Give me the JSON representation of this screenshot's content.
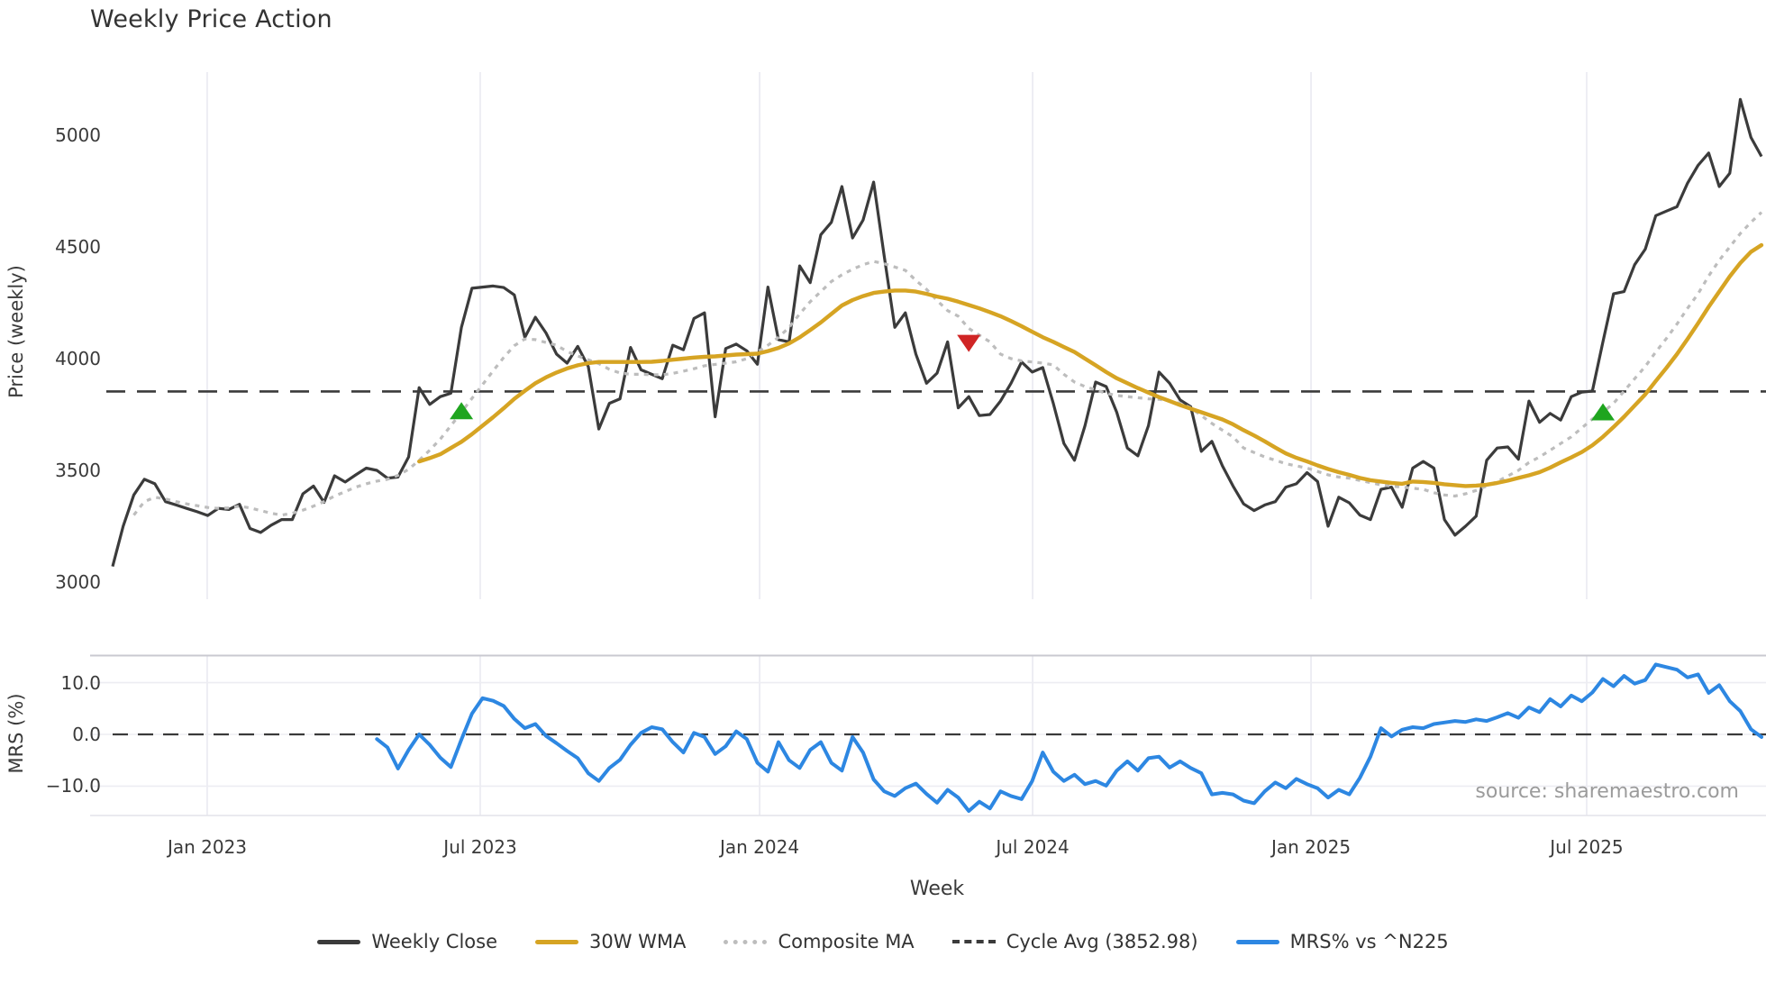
{
  "title": "Weekly Price Action",
  "source": "source: sharemaestro.com",
  "axes": {
    "price_label": "Price (weekly)",
    "mrs_label": "MRS (%)",
    "week_label": "Week",
    "price_ticks": [
      {
        "value": 5000,
        "label": "5000"
      },
      {
        "value": 4500,
        "label": "4500"
      },
      {
        "value": 4000,
        "label": "4000"
      },
      {
        "value": 3500,
        "label": "3500"
      },
      {
        "value": 3000,
        "label": "3000"
      }
    ],
    "mrs_ticks": [
      {
        "value": 10,
        "label": "10.0"
      },
      {
        "value": 0,
        "label": "0.0"
      },
      {
        "value": -10,
        "label": "−10.0"
      }
    ],
    "x_ticks": [
      {
        "label": "Jan 2023",
        "week": 8.95
      },
      {
        "label": "Jul 2023",
        "week": 34.78
      },
      {
        "label": "Jan 2024",
        "week": 61.21
      },
      {
        "label": "Jul 2024",
        "week": 87.04
      },
      {
        "label": "Jan 2025",
        "week": 113.38
      },
      {
        "label": "Jul 2025",
        "week": 139.46
      }
    ]
  },
  "colors": {
    "close": "#3b3b3b",
    "wma": "#d6a423",
    "composite": "#bdbdbd",
    "cycle_dash": "#3b3b3b",
    "mrs_line": "#2d87e2",
    "buy_marker": "#1fa51f",
    "sell_marker": "#d02525",
    "grid_vertical": "#e9e9f1",
    "grid_horizontal": "#ededf2",
    "panel_border": "#c9c9d0",
    "zero_dash": "#3a3a3a"
  },
  "legend": {
    "items": [
      {
        "label": "Weekly Close",
        "swatch": "solid",
        "color": "#3b3b3b"
      },
      {
        "label": "30W WMA",
        "swatch": "solid",
        "color": "#d6a423"
      },
      {
        "label": "Composite MA",
        "swatch": "dotted",
        "color": "#bdbdbd"
      },
      {
        "label": "Cycle Avg (3852.98)",
        "swatch": "dashed",
        "color": "#3b3b3b"
      },
      {
        "label": "MRS% vs ^N225",
        "swatch": "solid",
        "color": "#2d87e2"
      }
    ]
  },
  "chart_data": [
    {
      "type": "line",
      "panel": "price",
      "title": "Weekly Price Action",
      "xlabel": "Week",
      "ylabel": "Price (weekly)",
      "ylim": [
        2950,
        5300
      ],
      "x_unit": "week_index",
      "x_range_weeks": [
        0,
        156
      ],
      "x_tick_labels": [
        "Jan 2023",
        "Jul 2023",
        "Jan 2024",
        "Jul 2024",
        "Jan 2025",
        "Jul 2025"
      ],
      "grid": "vertical-only",
      "cycle_avg": 3852.98,
      "series": [
        {
          "name": "Weekly Close",
          "style": "solid",
          "start_week": 0,
          "values": [
            3070,
            3250,
            3390,
            3460,
            3440,
            3360,
            3345,
            3330,
            3315,
            3298,
            3330,
            3325,
            3348,
            3240,
            3222,
            3255,
            3280,
            3280,
            3395,
            3430,
            3357,
            3476,
            3448,
            3480,
            3510,
            3500,
            3465,
            3470,
            3560,
            3870,
            3795,
            3830,
            3845,
            4140,
            4315,
            4320,
            4325,
            4318,
            4285,
            4095,
            4185,
            4115,
            4020,
            3980,
            4055,
            3965,
            3685,
            3800,
            3820,
            4050,
            3950,
            3930,
            3910,
            4060,
            4040,
            4180,
            4205,
            3740,
            4045,
            4065,
            4035,
            3975,
            4320,
            4085,
            4075,
            4415,
            4340,
            4555,
            4610,
            4770,
            4540,
            4620,
            4790,
            4460,
            4140,
            4205,
            4020,
            3890,
            3935,
            4075,
            3780,
            3830,
            3745,
            3750,
            3810,
            3890,
            3985,
            3940,
            3960,
            3800,
            3620,
            3545,
            3700,
            3895,
            3875,
            3760,
            3600,
            3565,
            3700,
            3940,
            3890,
            3815,
            3785,
            3585,
            3630,
            3520,
            3430,
            3350,
            3320,
            3345,
            3360,
            3425,
            3440,
            3490,
            3450,
            3250,
            3380,
            3355,
            3300,
            3280,
            3415,
            3425,
            3335,
            3510,
            3540,
            3510,
            3280,
            3210,
            3250,
            3295,
            3545,
            3600,
            3605,
            3550,
            3810,
            3715,
            3755,
            3725,
            3830,
            3850,
            3855,
            4075,
            4290,
            4300,
            4420,
            4490,
            4640,
            4660,
            4680,
            4785,
            4865,
            4920,
            4770,
            4830,
            5160,
            4990,
            4905
          ]
        },
        {
          "name": "30W WMA",
          "style": "solid",
          "start_week": 29,
          "values": [
            3540,
            3555,
            3572,
            3600,
            3628,
            3662,
            3700,
            3738,
            3778,
            3820,
            3856,
            3890,
            3916,
            3938,
            3956,
            3970,
            3980,
            3985,
            3985,
            3985,
            3985,
            3985,
            3986,
            3990,
            3995,
            4000,
            4005,
            4008,
            4010,
            4014,
            4018,
            4020,
            4022,
            4034,
            4048,
            4068,
            4095,
            4128,
            4162,
            4200,
            4238,
            4262,
            4280,
            4294,
            4300,
            4305,
            4305,
            4300,
            4290,
            4278,
            4268,
            4255,
            4240,
            4225,
            4208,
            4190,
            4168,
            4145,
            4120,
            4096,
            4075,
            4052,
            4030,
            4000,
            3970,
            3940,
            3912,
            3890,
            3868,
            3848,
            3828,
            3810,
            3792,
            3776,
            3760,
            3744,
            3728,
            3706,
            3680,
            3656,
            3630,
            3602,
            3576,
            3556,
            3540,
            3522,
            3506,
            3492,
            3480,
            3466,
            3456,
            3450,
            3444,
            3440,
            3450,
            3448,
            3444,
            3438,
            3434,
            3430,
            3432,
            3436,
            3444,
            3454,
            3466,
            3478,
            3492,
            3512,
            3536,
            3558,
            3582,
            3612,
            3650,
            3694,
            3740,
            3790,
            3840,
            3900,
            3958,
            4020,
            4088,
            4158,
            4232,
            4300,
            4368,
            4428,
            4478,
            4508
          ]
        },
        {
          "name": "Composite MA",
          "style": "dotted",
          "start_week": 2,
          "values": [
            3300,
            3360,
            3380,
            3372,
            3360,
            3350,
            3342,
            3334,
            3330,
            3332,
            3340,
            3332,
            3320,
            3308,
            3300,
            3308,
            3322,
            3340,
            3360,
            3385,
            3405,
            3425,
            3440,
            3452,
            3460,
            3478,
            3505,
            3545,
            3590,
            3640,
            3700,
            3760,
            3822,
            3884,
            3945,
            4005,
            4058,
            4088,
            4085,
            4072,
            4060,
            4032,
            4012,
            3995,
            3978,
            3952,
            3936,
            3930,
            3930,
            3928,
            3928,
            3934,
            3944,
            3955,
            3968,
            3974,
            3980,
            3986,
            4000,
            4030,
            4060,
            4095,
            4140,
            4200,
            4255,
            4300,
            4345,
            4375,
            4400,
            4420,
            4435,
            4425,
            4410,
            4395,
            4350,
            4310,
            4260,
            4215,
            4190,
            4135,
            4105,
            4075,
            4020,
            4000,
            3990,
            3985,
            3980,
            3972,
            3930,
            3895,
            3875,
            3860,
            3845,
            3835,
            3830,
            3825,
            3820,
            3818,
            3810,
            3800,
            3780,
            3745,
            3710,
            3680,
            3650,
            3600,
            3580,
            3560,
            3545,
            3530,
            3520,
            3510,
            3495,
            3480,
            3470,
            3465,
            3455,
            3445,
            3435,
            3430,
            3425,
            3420,
            3415,
            3400,
            3390,
            3385,
            3395,
            3410,
            3430,
            3450,
            3475,
            3500,
            3535,
            3560,
            3590,
            3620,
            3650,
            3690,
            3730,
            3760,
            3800,
            3855,
            3910,
            3965,
            4030,
            4090,
            4155,
            4225,
            4290,
            4370,
            4440,
            4500,
            4560,
            4610,
            4655
          ]
        },
        {
          "name": "Cycle Avg (3852.98)",
          "style": "dashed",
          "constant": 3852.98
        }
      ],
      "markers": {
        "buy": [
          {
            "week": 33,
            "price": 3765
          },
          {
            "week": 141,
            "price": 3760
          }
        ],
        "sell": [
          {
            "week": 81,
            "price": 4070
          }
        ]
      }
    },
    {
      "type": "line",
      "panel": "mrs",
      "ylabel": "MRS (%)",
      "ylim": [
        -16,
        15.5
      ],
      "zero_line": 0,
      "grid": "both-light",
      "series": [
        {
          "name": "MRS% vs ^N225",
          "style": "solid",
          "start_week": 25,
          "values": [
            -0.9,
            -2.5,
            -6.6,
            -3.0,
            0.0,
            -2.0,
            -4.5,
            -6.3,
            -1.0,
            4.0,
            7.0,
            6.5,
            5.5,
            3.0,
            1.2,
            2.0,
            -0.3,
            -1.7,
            -3.2,
            -4.6,
            -7.5,
            -9.0,
            -6.5,
            -4.9,
            -2.0,
            0.3,
            1.4,
            1.0,
            -1.5,
            -3.5,
            0.3,
            -0.5,
            -3.8,
            -2.3,
            0.6,
            -0.9,
            -5.5,
            -7.2,
            -1.5,
            -5.0,
            -6.5,
            -3.0,
            -1.5,
            -5.5,
            -7.0,
            -0.5,
            -3.5,
            -8.7,
            -11.0,
            -11.9,
            -10.4,
            -9.5,
            -11.5,
            -13.2,
            -10.7,
            -12.2,
            -14.8,
            -13.0,
            -14.3,
            -11.0,
            -11.9,
            -12.5,
            -9.0,
            -3.5,
            -7.2,
            -9.0,
            -7.8,
            -9.6,
            -9.0,
            -9.9,
            -7.0,
            -5.2,
            -7.0,
            -4.6,
            -4.3,
            -6.4,
            -5.2,
            -6.5,
            -7.5,
            -11.6,
            -11.3,
            -11.6,
            -12.8,
            -13.3,
            -11.0,
            -9.3,
            -10.4,
            -8.6,
            -9.6,
            -10.4,
            -12.2,
            -10.7,
            -11.6,
            -8.4,
            -4.3,
            1.2,
            -0.4,
            0.9,
            1.4,
            1.2,
            2.0,
            2.3,
            2.6,
            2.4,
            2.9,
            2.6,
            3.3,
            4.1,
            3.2,
            5.2,
            4.3,
            6.8,
            5.4,
            7.5,
            6.4,
            8.1,
            10.7,
            9.3,
            11.3,
            9.8,
            10.5,
            13.5,
            13.0,
            12.5,
            11.0,
            11.6,
            8.0,
            9.5,
            6.4,
            4.5,
            1.0,
            -0.5
          ]
        }
      ]
    }
  ]
}
